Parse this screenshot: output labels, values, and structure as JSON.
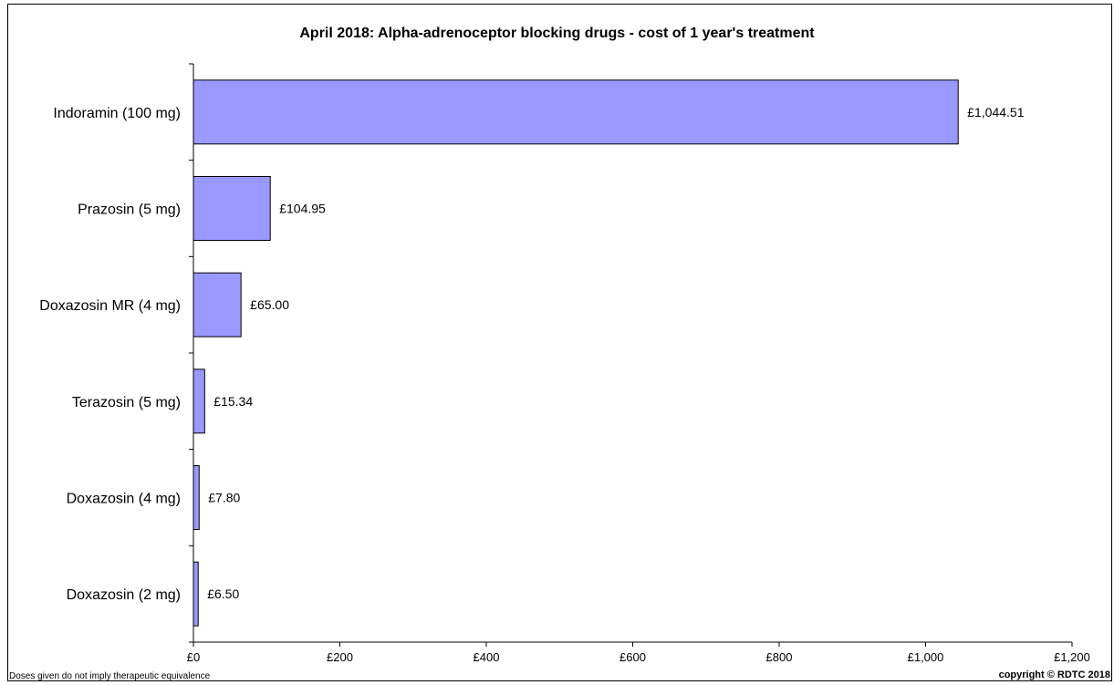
{
  "chart_data": {
    "type": "bar",
    "orientation": "horizontal",
    "title": "April 2018: Alpha-adrenoceptor blocking drugs - cost of 1 year's treatment",
    "categories": [
      "Indoramin (100 mg)",
      "Prazosin (5 mg)",
      "Doxazosin MR (4 mg)",
      "Terazosin (5 mg)",
      "Doxazosin (4 mg)",
      "Doxazosin (2 mg)"
    ],
    "values": [
      1044.51,
      104.95,
      65.0,
      15.34,
      7.8,
      6.5
    ],
    "data_labels": [
      "£1,044.51",
      "£104.95",
      "£65.00",
      "£15.34",
      "£7.80",
      "£6.50"
    ],
    "xlim": [
      0,
      1200
    ],
    "x_ticks": [
      0,
      200,
      400,
      600,
      800,
      1000,
      1200
    ],
    "x_tick_labels": [
      "£0",
      "£200",
      "£400",
      "£600",
      "£800",
      "£1,000",
      "£1,200"
    ],
    "bar_color": "#9999ff",
    "grid": false,
    "legend": "none"
  },
  "footnote": "Doses given do not imply  therapeutic equivalence",
  "copyright": "copyright © RDTC 2018"
}
